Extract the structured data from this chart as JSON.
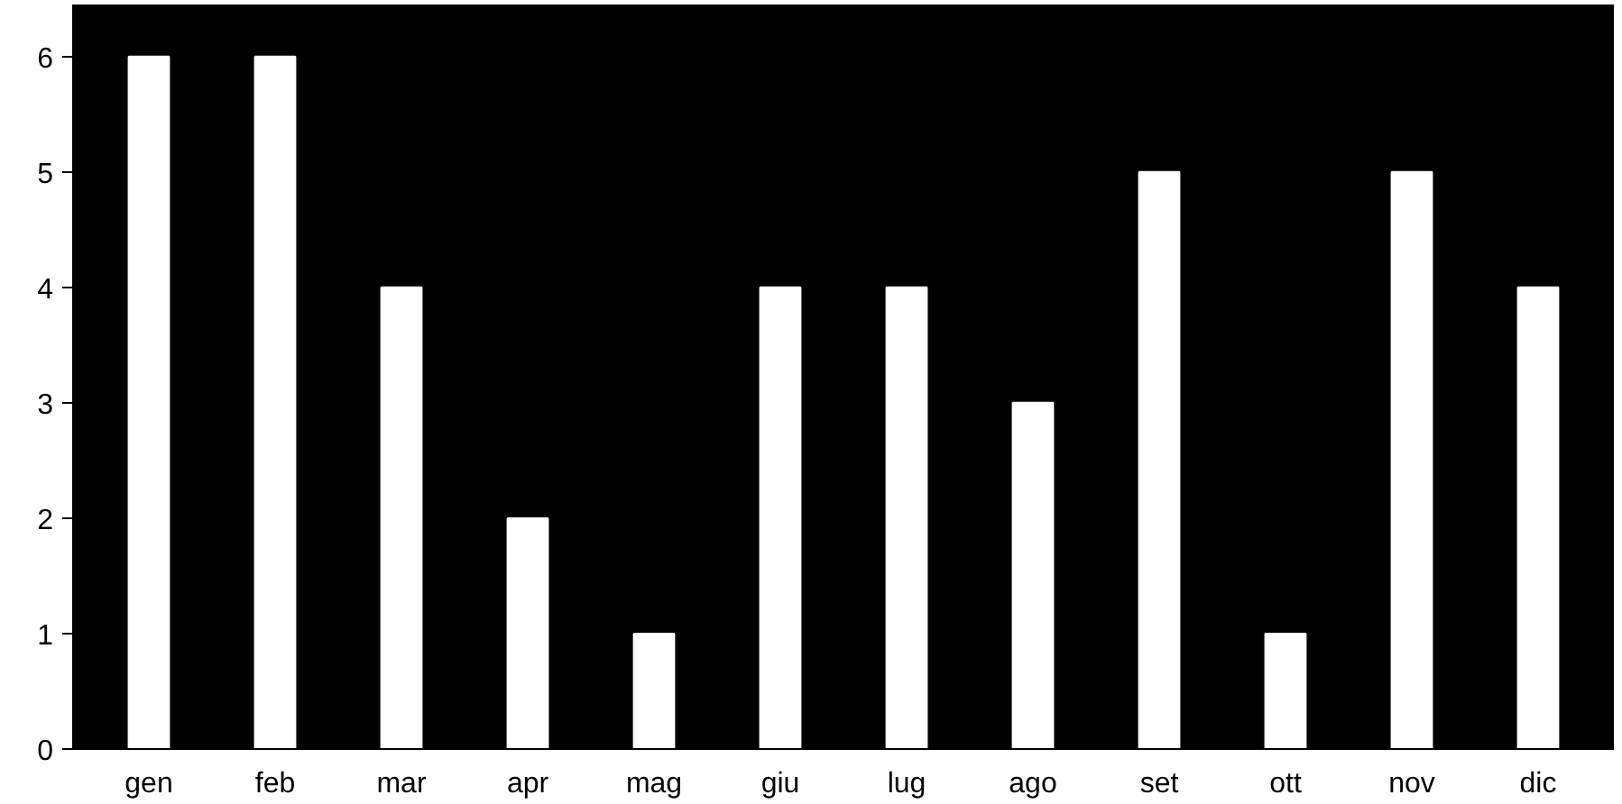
{
  "chart_data": {
    "type": "bar",
    "categories": [
      "gen",
      "feb",
      "mar",
      "apr",
      "mag",
      "giu",
      "lug",
      "ago",
      "set",
      "ott",
      "nov",
      "dic"
    ],
    "values": [
      6,
      6,
      4,
      2,
      1,
      4,
      4,
      3,
      5,
      1,
      5,
      4
    ],
    "color": "#ffffff",
    "ylim": [
      0,
      6.45
    ],
    "yticks": [
      0,
      1,
      2,
      3,
      4,
      5,
      6
    ],
    "grid": false
  }
}
